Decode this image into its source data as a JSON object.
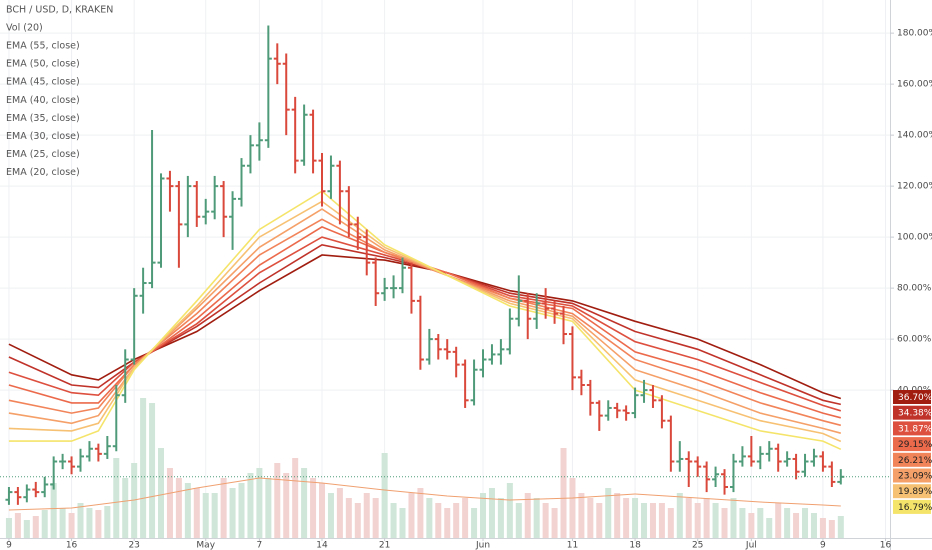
{
  "chart_data": {
    "type": "ohlc",
    "title": "BCH / USD, D, KRAKEN",
    "xlim": [
      -1,
      98.5
    ],
    "xticks": [
      {
        "value": 0,
        "label": "9"
      },
      {
        "value": 7,
        "label": "16"
      },
      {
        "value": 14,
        "label": "23"
      },
      {
        "value": 22,
        "label": "May"
      },
      {
        "value": 28,
        "label": "7"
      },
      {
        "value": 35,
        "label": "14"
      },
      {
        "value": 42,
        "label": "21"
      },
      {
        "value": 53,
        "label": "Jun"
      },
      {
        "value": 63,
        "label": "11"
      },
      {
        "value": 70,
        "label": "18"
      },
      {
        "value": 77,
        "label": "25"
      },
      {
        "value": 83,
        "label": "Jul"
      },
      {
        "value": 91,
        "label": "9"
      },
      {
        "value": 98,
        "label": "16"
      }
    ],
    "ylim": [
      -18,
      193
    ],
    "yticks": [
      {
        "value": 40,
        "label": "40.00%"
      },
      {
        "value": 60,
        "label": "60.00%"
      },
      {
        "value": 80,
        "label": "80.00%"
      },
      {
        "value": 100,
        "label": "100.00%"
      },
      {
        "value": 120,
        "label": "120.00%"
      },
      {
        "value": 140,
        "label": "140.00%"
      },
      {
        "value": 160,
        "label": "160.00%"
      },
      {
        "value": 180,
        "label": "180.00%"
      }
    ],
    "grid": true,
    "up_color": "#4f9b79",
    "down_color": "#d9483b",
    "x": [
      0,
      1,
      2,
      3,
      4,
      5,
      6,
      7,
      8,
      9,
      10,
      11,
      12,
      13,
      14,
      15,
      16,
      17,
      18,
      19,
      20,
      21,
      22,
      23,
      24,
      25,
      26,
      27,
      28,
      29,
      30,
      31,
      32,
      33,
      34,
      35,
      36,
      37,
      38,
      39,
      40,
      41,
      42,
      43,
      44,
      45,
      46,
      47,
      48,
      49,
      50,
      51,
      52,
      53,
      54,
      55,
      56,
      57,
      58,
      59,
      60,
      61,
      62,
      63,
      64,
      65,
      66,
      67,
      68,
      69,
      70,
      71,
      72,
      73,
      74,
      75,
      76,
      77,
      78,
      79,
      80,
      81,
      82,
      83,
      84,
      85,
      86,
      87,
      88,
      89,
      90,
      91,
      92,
      93
    ],
    "ohlc": [
      [
        -3,
        2,
        -5,
        0
      ],
      [
        0,
        2,
        -5,
        -2
      ],
      [
        -2,
        3,
        -4,
        1
      ],
      [
        1,
        4,
        -2,
        0
      ],
      [
        0,
        6,
        -2,
        3
      ],
      [
        3,
        14,
        1,
        12
      ],
      [
        12,
        15,
        9,
        12
      ],
      [
        12,
        14,
        7,
        10
      ],
      [
        10,
        17,
        8,
        14
      ],
      [
        14,
        20,
        12,
        17
      ],
      [
        17,
        19,
        12,
        15
      ],
      [
        15,
        22,
        13,
        18
      ],
      [
        18,
        42,
        16,
        38
      ],
      [
        38,
        56,
        35,
        52
      ],
      [
        52,
        80,
        50,
        77
      ],
      [
        77,
        88,
        70,
        82
      ],
      [
        82,
        142,
        80,
        90
      ],
      [
        90,
        125,
        88,
        123
      ],
      [
        123,
        126,
        110,
        120
      ],
      [
        120,
        122,
        88,
        105
      ],
      [
        105,
        124,
        100,
        120
      ],
      [
        120,
        122,
        104,
        108
      ],
      [
        108,
        115,
        105,
        110
      ],
      [
        110,
        124,
        107,
        120
      ],
      [
        120,
        122,
        100,
        108
      ],
      [
        108,
        118,
        95,
        115
      ],
      [
        115,
        131,
        112,
        128
      ],
      [
        128,
        140,
        125,
        136
      ],
      [
        136,
        145,
        130,
        138
      ],
      [
        138,
        183,
        135,
        170
      ],
      [
        170,
        176,
        160,
        168
      ],
      [
        168,
        172,
        140,
        150
      ],
      [
        150,
        155,
        125,
        130
      ],
      [
        130,
        152,
        128,
        148
      ],
      [
        148,
        150,
        125,
        130
      ],
      [
        130,
        133,
        112,
        118
      ],
      [
        118,
        132,
        115,
        128
      ],
      [
        128,
        130,
        105,
        118
      ],
      [
        118,
        120,
        100,
        105
      ],
      [
        105,
        108,
        95,
        100
      ],
      [
        100,
        103,
        85,
        90
      ],
      [
        90,
        92,
        73,
        78
      ],
      [
        78,
        84,
        75,
        80
      ],
      [
        80,
        85,
        76,
        80
      ],
      [
        80,
        92,
        78,
        88
      ],
      [
        88,
        90,
        70,
        75
      ],
      [
        75,
        77,
        48,
        52
      ],
      [
        52,
        64,
        50,
        60
      ],
      [
        60,
        62,
        52,
        56
      ],
      [
        56,
        60,
        52,
        55
      ],
      [
        55,
        57,
        45,
        50
      ],
      [
        50,
        52,
        33,
        36
      ],
      [
        36,
        52,
        34,
        48
      ],
      [
        48,
        56,
        45,
        52
      ],
      [
        52,
        58,
        50,
        54
      ],
      [
        54,
        60,
        50,
        56
      ],
      [
        56,
        72,
        54,
        68
      ],
      [
        68,
        85,
        65,
        75
      ],
      [
        75,
        78,
        60,
        68
      ],
      [
        68,
        78,
        64,
        74
      ],
      [
        74,
        80,
        68,
        72
      ],
      [
        72,
        75,
        66,
        70
      ],
      [
        70,
        73,
        58,
        62
      ],
      [
        62,
        65,
        40,
        45
      ],
      [
        45,
        48,
        38,
        42
      ],
      [
        42,
        44,
        30,
        35
      ],
      [
        35,
        36,
        24,
        30
      ],
      [
        30,
        36,
        28,
        33
      ],
      [
        33,
        35,
        29,
        32
      ],
      [
        32,
        34,
        28,
        31
      ],
      [
        31,
        41,
        29,
        38
      ],
      [
        38,
        44,
        35,
        40
      ],
      [
        40,
        42,
        33,
        36
      ],
      [
        36,
        38,
        25,
        28
      ],
      [
        28,
        30,
        8,
        12
      ],
      [
        12,
        20,
        8,
        13
      ],
      [
        13,
        16,
        2,
        12
      ],
      [
        12,
        14,
        6,
        10
      ],
      [
        10,
        12,
        0,
        5
      ],
      [
        5,
        10,
        2,
        7
      ],
      [
        7,
        9,
        -1,
        2
      ],
      [
        2,
        15,
        0,
        12
      ],
      [
        12,
        18,
        10,
        14
      ],
      [
        14,
        22,
        10,
        12
      ],
      [
        12,
        18,
        9,
        15
      ],
      [
        15,
        20,
        12,
        17
      ],
      [
        17,
        19,
        8,
        12
      ],
      [
        12,
        16,
        10,
        13
      ],
      [
        13,
        15,
        5,
        8
      ],
      [
        8,
        15,
        6,
        12
      ],
      [
        12,
        17,
        10,
        14
      ],
      [
        14,
        16,
        8,
        10
      ],
      [
        10,
        12,
        2,
        4
      ],
      [
        4,
        9,
        3,
        6
      ]
    ],
    "volume": {
      "name": "Vol (20)",
      "ylim": [
        0,
        150
      ],
      "up_color": "#cfe6d8",
      "down_color": "#f2d3d1",
      "values": [
        20,
        25,
        18,
        22,
        28,
        55,
        30,
        25,
        35,
        30,
        28,
        32,
        80,
        60,
        75,
        140,
        135,
        90,
        70,
        60,
        55,
        50,
        45,
        45,
        60,
        50,
        55,
        65,
        70,
        60,
        75,
        65,
        80,
        70,
        60,
        55,
        45,
        50,
        40,
        35,
        45,
        40,
        85,
        35,
        30,
        45,
        50,
        40,
        35,
        30,
        35,
        40,
        30,
        45,
        50,
        40,
        55,
        35,
        45,
        40,
        35,
        30,
        90,
        60,
        45,
        40,
        35,
        50,
        45,
        40,
        40,
        35,
        35,
        35,
        30,
        45,
        40,
        35,
        40,
        35,
        30,
        40,
        30,
        25,
        30,
        20,
        35,
        30,
        25,
        30,
        25,
        20,
        18,
        22
      ],
      "ma": {
        "color": "#f0a070",
        "x": [
          0,
          7,
          14,
          21,
          28,
          35,
          42,
          49,
          56,
          63,
          70,
          77,
          84,
          91,
          93
        ],
        "values": [
          28,
          30,
          38,
          50,
          60,
          55,
          48,
          42,
          38,
          40,
          44,
          40,
          36,
          33,
          32
        ]
      }
    },
    "ema": [
      {
        "name": "EMA (55, close)",
        "color": "#a01d10",
        "last_label": "36.70%",
        "x": [
          0,
          7,
          10,
          14,
          21,
          28,
          35,
          42,
          49,
          56,
          63,
          70,
          77,
          84,
          91,
          93
        ],
        "values": [
          58,
          46,
          44,
          52,
          63,
          79,
          93,
          91,
          86,
          79,
          75,
          67,
          60,
          50,
          39,
          36.7
        ]
      },
      {
        "name": "EMA (50, close)",
        "color": "#c0332a",
        "last_label": "34.38%",
        "x": [
          0,
          7,
          10,
          14,
          21,
          28,
          35,
          42,
          49,
          56,
          63,
          70,
          77,
          84,
          91,
          93
        ],
        "values": [
          53,
          42,
          41,
          51,
          65,
          82,
          97,
          92,
          86,
          78,
          74,
          63,
          56,
          46,
          36,
          34.38
        ]
      },
      {
        "name": "EMA (45, close)",
        "color": "#dd4f3e",
        "last_label": "31.87%",
        "x": [
          0,
          7,
          10,
          14,
          21,
          28,
          35,
          42,
          49,
          56,
          63,
          70,
          77,
          84,
          91,
          93
        ],
        "values": [
          47,
          39,
          38,
          51,
          66,
          86,
          100,
          93,
          86,
          77,
          73,
          59,
          52,
          43,
          34,
          31.87
        ]
      },
      {
        "name": "EMA (40, close)",
        "color": "#ec6a4c",
        "last_label": "29.15%",
        "x": [
          0,
          7,
          10,
          14,
          21,
          28,
          35,
          42,
          49,
          56,
          63,
          70,
          77,
          84,
          91,
          93
        ],
        "values": [
          42,
          35,
          35,
          50,
          68,
          89,
          104,
          94,
          86,
          76,
          72,
          55,
          48,
          39,
          31,
          29.15
        ]
      },
      {
        "name": "EMA (35, close)",
        "color": "#f2845a",
        "last_label": "26.21%",
        "x": [
          0,
          7,
          10,
          14,
          21,
          28,
          35,
          42,
          49,
          56,
          63,
          70,
          77,
          84,
          91,
          93
        ],
        "values": [
          36,
          31,
          33,
          50,
          70,
          93,
          107,
          94,
          85,
          76,
          70,
          52,
          44,
          35,
          28,
          26.21
        ]
      },
      {
        "name": "EMA (30, close)",
        "color": "#f5a068",
        "last_label": "23.09%",
        "x": [
          0,
          7,
          10,
          14,
          21,
          28,
          35,
          42,
          49,
          56,
          63,
          70,
          77,
          84,
          91,
          93
        ],
        "values": [
          31,
          27,
          30,
          49,
          72,
          96,
          111,
          95,
          85,
          75,
          69,
          48,
          40,
          31,
          25,
          23.09
        ]
      },
      {
        "name": "EMA (25, close)",
        "color": "#f7c173",
        "last_label": "19.89%",
        "x": [
          0,
          7,
          10,
          14,
          21,
          28,
          35,
          42,
          49,
          56,
          63,
          70,
          77,
          84,
          91,
          93
        ],
        "values": [
          25,
          24,
          27,
          49,
          73,
          100,
          114,
          96,
          85,
          74,
          68,
          44,
          36,
          28,
          23,
          19.89
        ]
      },
      {
        "name": "EMA (20, close)",
        "color": "#f5e46a",
        "last_label": "16.79%",
        "x": [
          0,
          7,
          10,
          14,
          21,
          28,
          35,
          42,
          49,
          56,
          63,
          70,
          77,
          84,
          91,
          93
        ],
        "values": [
          20,
          20,
          24,
          48,
          75,
          103,
          118,
          97,
          85,
          73,
          67,
          40,
          32,
          24,
          20,
          16.79
        ]
      }
    ]
  }
}
